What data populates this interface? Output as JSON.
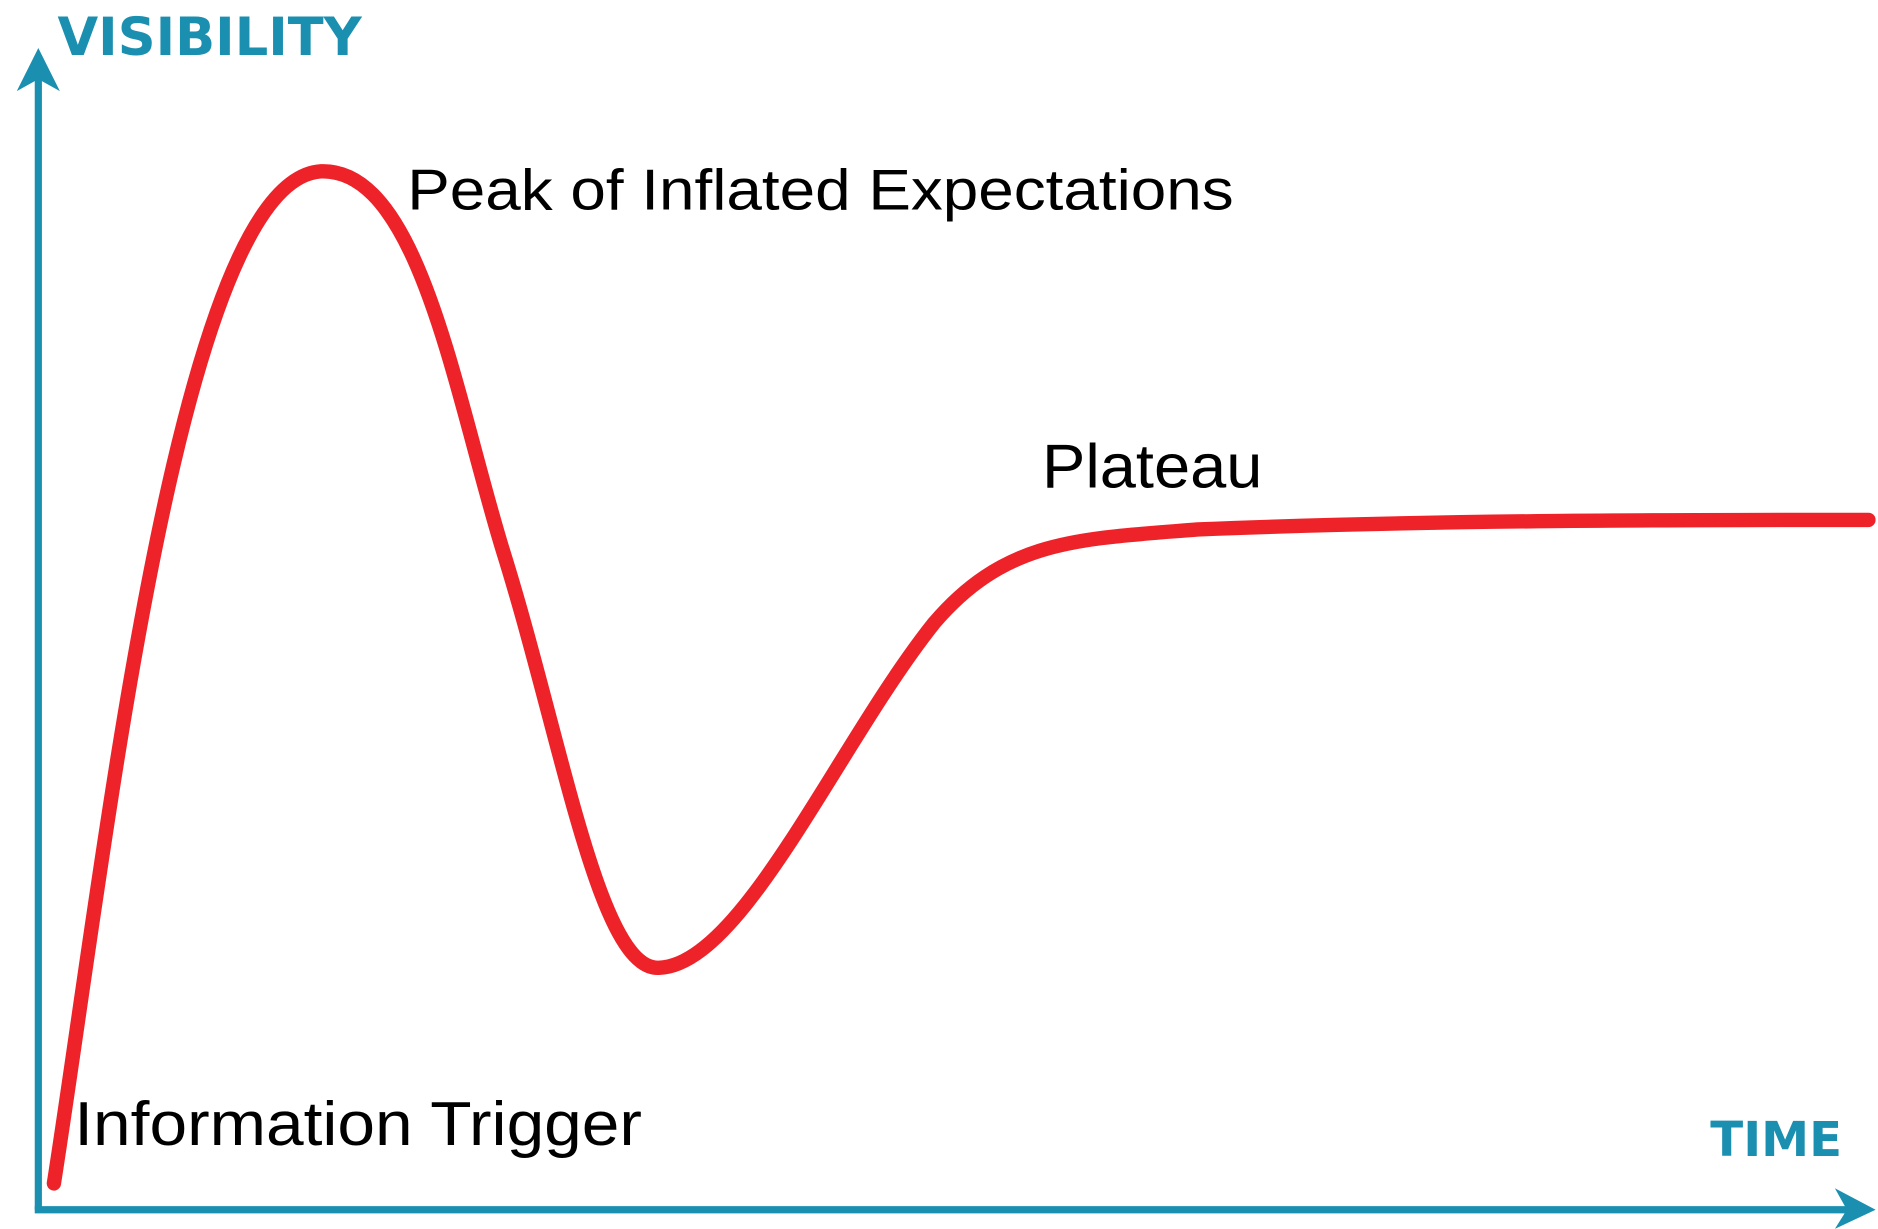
{
  "axes": {
    "y_label": "VISIBILITY",
    "x_label": "TIME"
  },
  "labels": {
    "peak": "Peak of Inflated Expectations",
    "plateau": "Plateau",
    "trigger": "Information Trigger"
  }
}
